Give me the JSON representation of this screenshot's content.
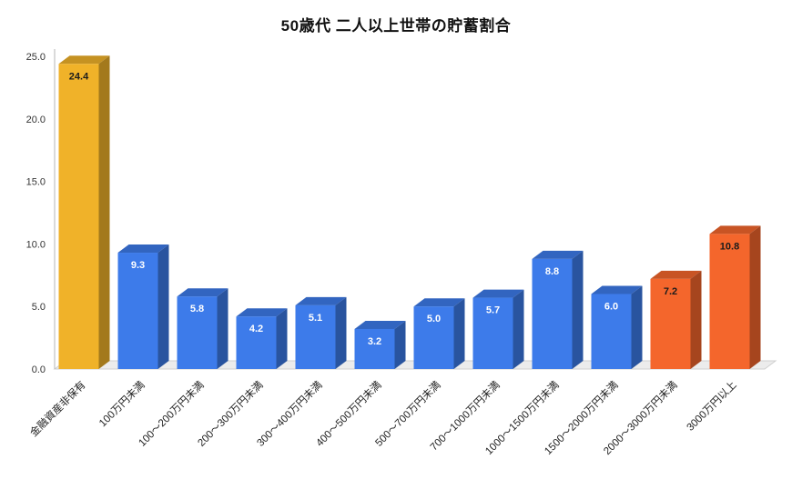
{
  "title": "50歳代 二人以上世帯の貯蓄割合",
  "chart_data": {
    "type": "bar",
    "style": "3d-column",
    "title": "50歳代 二人以上世帯の貯蓄割合",
    "categories": [
      "金融資産非保有",
      "100万円未満",
      "100〜200万円未満",
      "200〜300万円未満",
      "300〜400万円未満",
      "400〜500万円未満",
      "500〜700万円未満",
      "700〜1000万円未満",
      "1000〜1500万円未満",
      "1500〜2000万円未満",
      "2000〜3000万円未満",
      "3000万円以上"
    ],
    "values": [
      24.4,
      9.3,
      5.8,
      4.2,
      5.1,
      3.2,
      5.0,
      5.7,
      8.8,
      6.0,
      7.2,
      10.8
    ],
    "bar_colors": [
      "#F0B229",
      "#3D7BEA",
      "#3D7BEA",
      "#3D7BEA",
      "#3D7BEA",
      "#3D7BEA",
      "#3D7BEA",
      "#3D7BEA",
      "#3D7BEA",
      "#3D7BEA",
      "#F4662C",
      "#F4662C"
    ],
    "value_label_colors": [
      "#1c1c1c",
      "#ffffff",
      "#ffffff",
      "#ffffff",
      "#ffffff",
      "#ffffff",
      "#ffffff",
      "#ffffff",
      "#ffffff",
      "#ffffff",
      "#1c1c1c",
      "#1c1c1c"
    ],
    "xlabel": "",
    "ylabel": "",
    "ylim": [
      0,
      25
    ],
    "ytick_step": 5,
    "ytick_labels": [
      "0.0",
      "5.0",
      "10.0",
      "15.0",
      "20.0",
      "25.0"
    ],
    "grid": false,
    "legend": "none"
  },
  "colors": {
    "background": "#ffffff",
    "axis_line": "#b5b5b5",
    "floor_fill": "#ececec",
    "floor_edge": "#cfcfcf",
    "tick_text": "#333333",
    "category_text": "#222222"
  }
}
